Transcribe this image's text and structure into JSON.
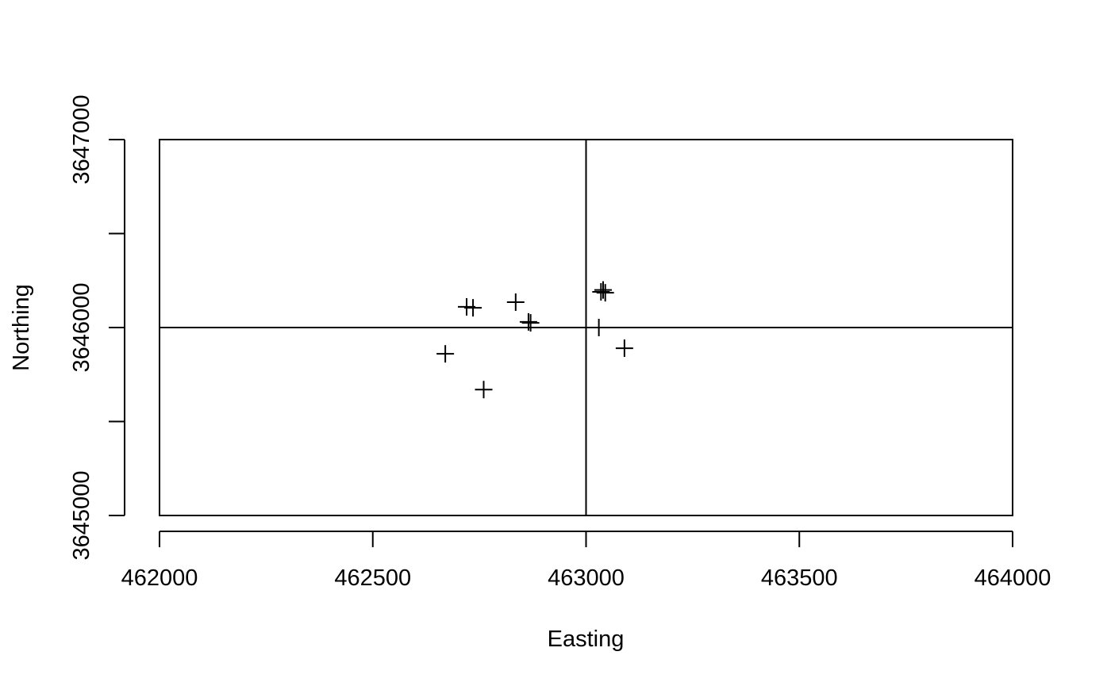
{
  "chart_data": {
    "type": "scatter",
    "title": "",
    "xlabel": "Easting",
    "ylabel": "Northing",
    "xlim": [
      462000,
      464000
    ],
    "ylim": [
      3645000,
      3647000
    ],
    "x_ticks": [
      462000,
      462500,
      463000,
      463500,
      464000
    ],
    "x_tick_labels": [
      "462000",
      "462500",
      "463000",
      "463500",
      "464000"
    ],
    "y_ticks": [
      3645000,
      3645500,
      3646000,
      3646500,
      3647000
    ],
    "y_tick_labels": [
      "3645000",
      "",
      "3646000",
      "",
      "3647000"
    ],
    "grid": {
      "vertical_lines": [
        463000
      ],
      "horizontal_lines": [
        3646000
      ]
    },
    "marker": "+",
    "points": [
      {
        "x": 462670,
        "y": 3645860
      },
      {
        "x": 462720,
        "y": 3646110
      },
      {
        "x": 462735,
        "y": 3646105
      },
      {
        "x": 462760,
        "y": 3645670
      },
      {
        "x": 462835,
        "y": 3646135
      },
      {
        "x": 462865,
        "y": 3646030
      },
      {
        "x": 462870,
        "y": 3646025
      },
      {
        "x": 463030,
        "y": 3646000
      },
      {
        "x": 463035,
        "y": 3646190
      },
      {
        "x": 463040,
        "y": 3646200
      },
      {
        "x": 463045,
        "y": 3646185
      },
      {
        "x": 463090,
        "y": 3645890
      }
    ]
  }
}
